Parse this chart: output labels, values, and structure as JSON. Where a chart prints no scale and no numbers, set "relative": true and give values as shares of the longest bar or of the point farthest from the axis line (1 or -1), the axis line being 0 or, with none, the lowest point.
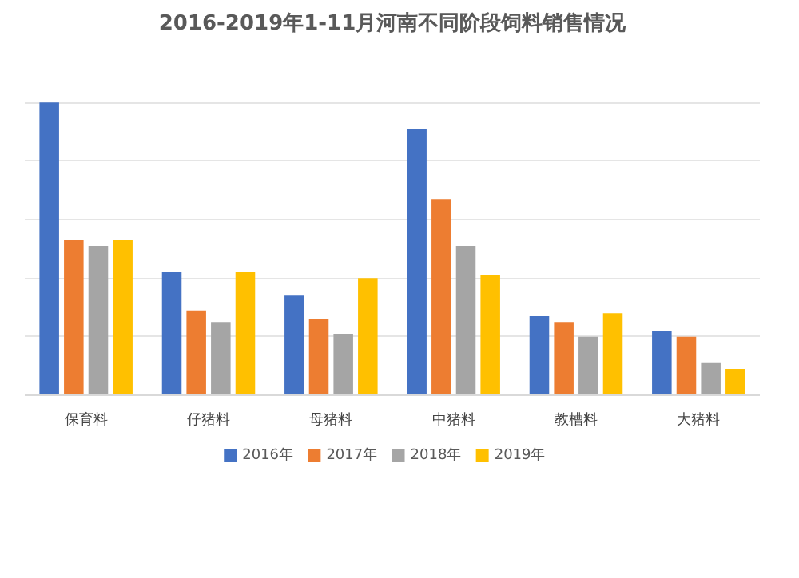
{
  "chart_data": {
    "type": "bar",
    "title": "2016-2019年1-11月河南不同阶段饲料销售情况",
    "categories": [
      "保育料",
      "仔猪料",
      "母猪料",
      "中猪料",
      "教槽料",
      "大猪料"
    ],
    "relative": true,
    "grid": "y",
    "legend": "bottom",
    "series": [
      {
        "name": "2016年",
        "color": "#4472c4",
        "values": [
          1,
          0.42,
          0.34,
          0.91,
          0.27,
          0.22
        ]
      },
      {
        "name": "2017年",
        "color": "#ed7d31",
        "values": [
          0.53,
          0.29,
          0.26,
          0.67,
          0.25,
          0.2
        ]
      },
      {
        "name": "2018年",
        "color": "#a5a5a5",
        "values": [
          0.51,
          0.25,
          0.21,
          0.51,
          0.2,
          0.11
        ]
      },
      {
        "name": "2019年",
        "color": "#ffc000",
        "values": [
          0.53,
          0.42,
          0.4,
          0.41,
          0.28,
          0.09
        ]
      }
    ]
  }
}
